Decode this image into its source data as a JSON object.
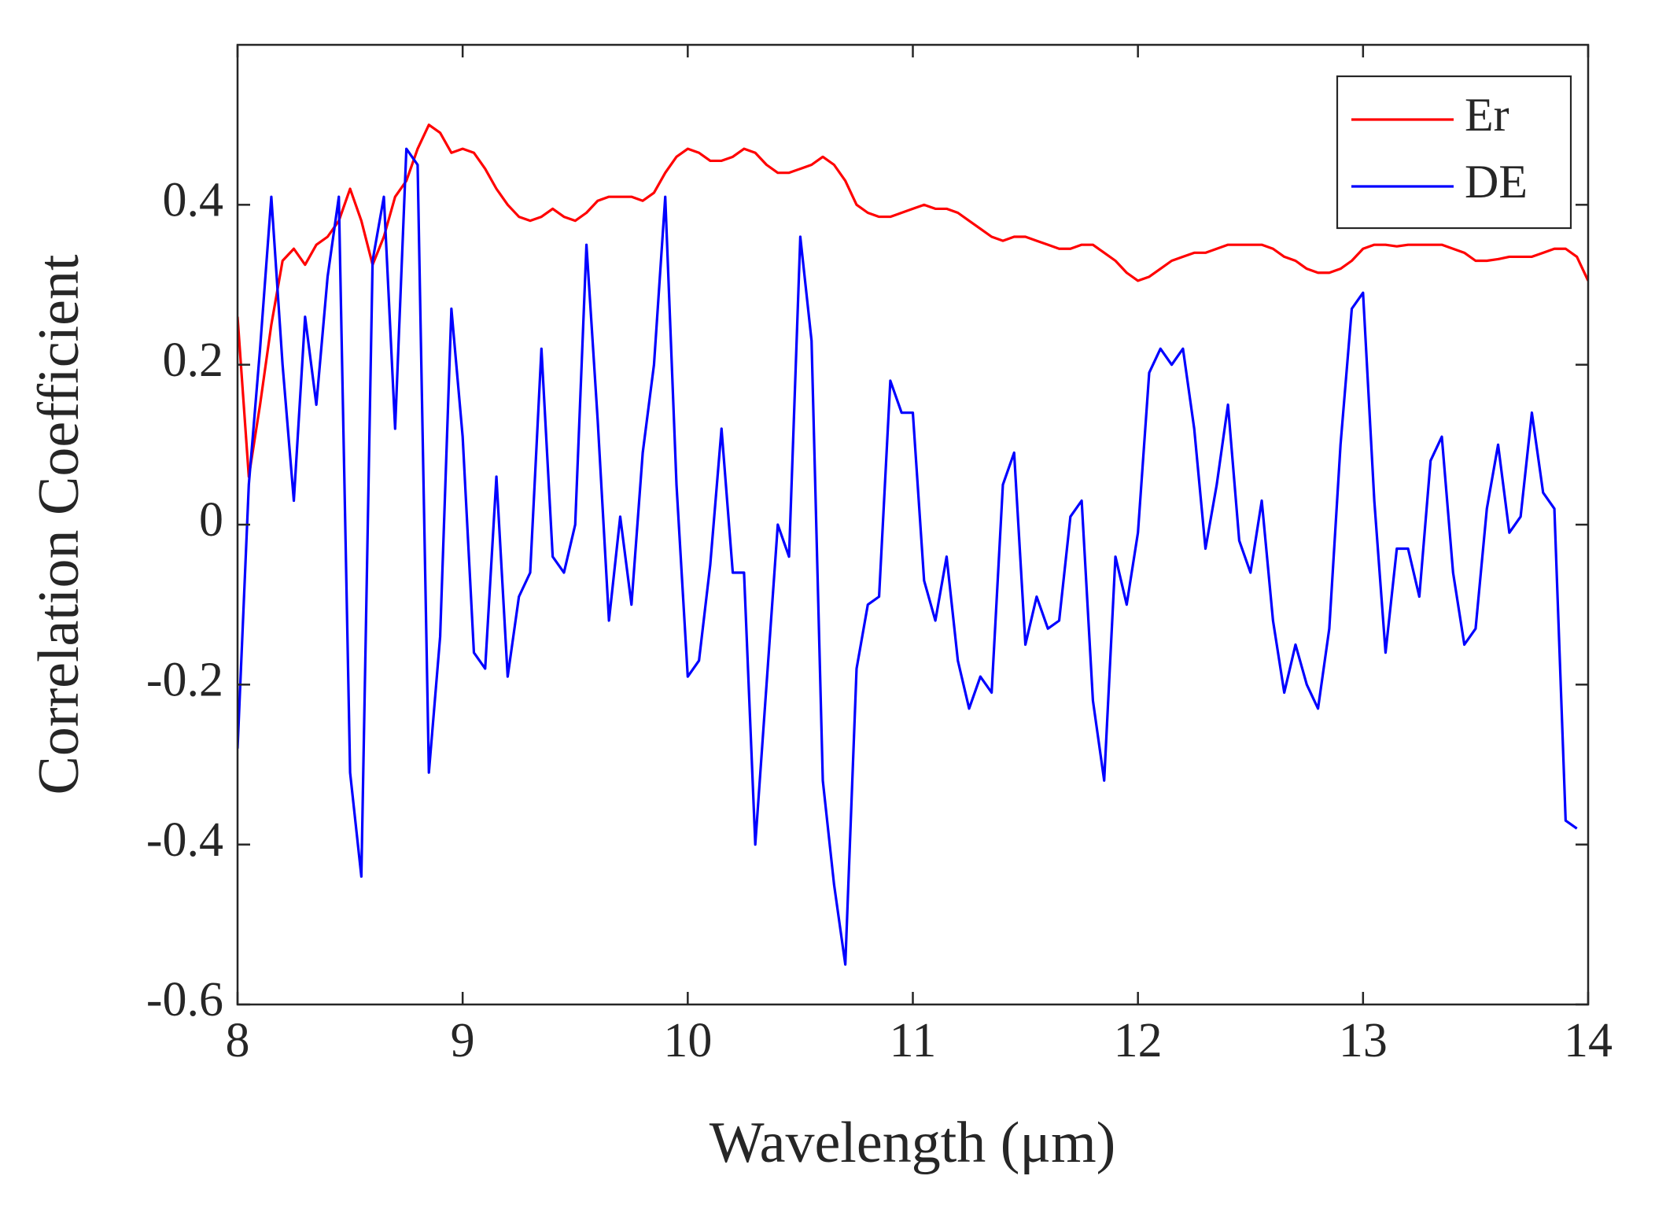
{
  "chart_data": {
    "type": "line",
    "x_label": "Wavelength (μm)",
    "y_label": "Correlation Coefficient",
    "xlim": [
      8,
      14
    ],
    "xticks": [
      8,
      9,
      10,
      11,
      12,
      13,
      14
    ],
    "ylim": [
      -0.6,
      0.6
    ],
    "yticks": [
      -0.6,
      -0.4,
      -0.2,
      0,
      0.2,
      0.4
    ],
    "grid": false,
    "legend": "upper right",
    "x": [
      8.0,
      8.05,
      8.1,
      8.15,
      8.2,
      8.25,
      8.3,
      8.35,
      8.4,
      8.45,
      8.5,
      8.55,
      8.6,
      8.65,
      8.7,
      8.75,
      8.8,
      8.85,
      8.9,
      8.95,
      9.0,
      9.05,
      9.1,
      9.15,
      9.2,
      9.25,
      9.3,
      9.35,
      9.4,
      9.45,
      9.5,
      9.55,
      9.6,
      9.65,
      9.7,
      9.75,
      9.8,
      9.85,
      9.9,
      9.95,
      10.0,
      10.05,
      10.1,
      10.15,
      10.2,
      10.25,
      10.3,
      10.35,
      10.4,
      10.45,
      10.5,
      10.55,
      10.6,
      10.65,
      10.7,
      10.75,
      10.8,
      10.85,
      10.9,
      10.95,
      11.0,
      11.05,
      11.1,
      11.15,
      11.2,
      11.25,
      11.3,
      11.35,
      11.4,
      11.45,
      11.5,
      11.55,
      11.6,
      11.65,
      11.7,
      11.75,
      11.8,
      11.85,
      11.9,
      11.95,
      12.0,
      12.05,
      12.1,
      12.15,
      12.2,
      12.25,
      12.3,
      12.35,
      12.4,
      12.45,
      12.5,
      12.55,
      12.6,
      12.65,
      12.7,
      12.75,
      12.8,
      12.85,
      12.9,
      12.95,
      13.0,
      13.05,
      13.1,
      13.15,
      13.2,
      13.25,
      13.3,
      13.35,
      13.4,
      13.45,
      13.5,
      13.55,
      13.6,
      13.65,
      13.7,
      13.75,
      13.8,
      13.85,
      13.9,
      13.95,
      14.0
    ],
    "series": [
      {
        "name": "Er",
        "color": "#ff0000",
        "values": [
          0.26,
          0.06,
          0.15,
          0.25,
          0.33,
          0.345,
          0.325,
          0.35,
          0.36,
          0.38,
          0.42,
          0.38,
          0.325,
          0.36,
          0.41,
          0.43,
          0.47,
          0.5,
          0.49,
          0.465,
          0.47,
          0.465,
          0.445,
          0.42,
          0.4,
          0.385,
          0.38,
          0.385,
          0.395,
          0.385,
          0.38,
          0.39,
          0.405,
          0.41,
          0.41,
          0.41,
          0.405,
          0.415,
          0.44,
          0.46,
          0.47,
          0.465,
          0.455,
          0.455,
          0.46,
          0.47,
          0.465,
          0.45,
          0.44,
          0.44,
          0.445,
          0.45,
          0.46,
          0.45,
          0.43,
          0.4,
          0.39,
          0.385,
          0.385,
          0.39,
          0.395,
          0.4,
          0.395,
          0.395,
          0.39,
          0.38,
          0.37,
          0.36,
          0.355,
          0.36,
          0.36,
          0.355,
          0.35,
          0.345,
          0.345,
          0.35,
          0.35,
          0.34,
          0.33,
          0.315,
          0.305,
          0.31,
          0.32,
          0.33,
          0.335,
          0.34,
          0.34,
          0.345,
          0.35,
          0.35,
          0.35,
          0.35,
          0.345,
          0.335,
          0.33,
          0.32,
          0.315,
          0.315,
          0.32,
          0.33,
          0.345,
          0.35,
          0.35,
          0.348,
          0.35,
          0.35,
          0.35,
          0.35,
          0.345,
          0.34,
          0.33,
          0.33,
          0.332,
          0.335,
          0.335,
          0.335,
          0.34,
          0.345,
          0.345,
          0.335,
          0.305
        ]
      },
      {
        "name": "DE",
        "color": "#0000ff",
        "values": [
          -0.28,
          0.05,
          0.22,
          0.41,
          0.2,
          0.03,
          0.26,
          0.15,
          0.31,
          0.41,
          -0.31,
          -0.44,
          0.33,
          0.41,
          0.12,
          0.47,
          0.45,
          -0.31,
          -0.14,
          0.27,
          0.11,
          -0.16,
          -0.18,
          0.06,
          -0.19,
          -0.09,
          -0.06,
          0.22,
          -0.04,
          -0.06,
          0.0,
          0.35,
          0.13,
          -0.12,
          0.01,
          -0.1,
          0.09,
          0.2,
          0.41,
          0.05,
          -0.19,
          -0.17,
          -0.05,
          0.12,
          -0.06,
          -0.06,
          -0.4,
          -0.2,
          0.0,
          -0.04,
          0.36,
          0.23,
          -0.32,
          -0.45,
          -0.55,
          -0.18,
          -0.1,
          -0.09,
          0.18,
          0.14,
          0.14,
          -0.07,
          -0.12,
          -0.04,
          -0.17,
          -0.23,
          -0.19,
          -0.21,
          0.05,
          0.09,
          -0.15,
          -0.09,
          -0.13,
          -0.12,
          0.01,
          0.03,
          -0.22,
          -0.32,
          -0.04,
          -0.1,
          -0.01,
          0.19,
          0.22,
          0.2,
          0.22,
          0.12,
          -0.03,
          0.05,
          0.15,
          -0.02,
          -0.06,
          0.03,
          -0.12,
          -0.21,
          -0.15,
          -0.2,
          -0.23,
          -0.13,
          0.1,
          0.27,
          0.29,
          0.03,
          -0.16,
          -0.03,
          -0.03,
          -0.09,
          0.08,
          0.11,
          -0.06,
          -0.15,
          -0.13,
          0.02,
          0.1,
          -0.01,
          0.01,
          0.14,
          0.04,
          0.02,
          -0.37,
          -0.38,
          null
        ]
      }
    ]
  }
}
